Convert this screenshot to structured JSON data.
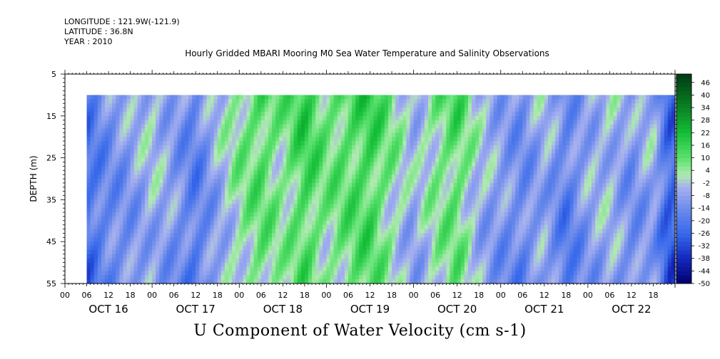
{
  "header": {
    "longitude": "LONGITUDE : 121.9W(-121.9)",
    "latitude": "LATITUDE : 36.8N",
    "year": "YEAR : 2010"
  },
  "chart_data": {
    "type": "heatmap",
    "title": "Hourly Gridded MBARI Mooring M0 Sea Water Temperature and Salinity Observations",
    "xlabel": "U Component of Water Velocity (cm s-1)",
    "ylabel": "DEPTH (m)",
    "x_range_hours": [
      0,
      168
    ],
    "data_start_hour": 6,
    "data_depth_range": [
      10,
      55
    ],
    "y_range": [
      5,
      55
    ],
    "y_inverted": true,
    "y_ticks": [
      5,
      15,
      25,
      35,
      45,
      55
    ],
    "x_hour_ticks": [
      "00",
      "06",
      "12",
      "18",
      "00",
      "06",
      "12",
      "18",
      "00",
      "06",
      "12",
      "18",
      "00",
      "06",
      "12",
      "18",
      "00",
      "06",
      "12",
      "18",
      "00",
      "06",
      "12",
      "18",
      "00",
      "06",
      "12",
      "18"
    ],
    "x_day_labels": [
      "OCT 16",
      "OCT 17",
      "OCT 18",
      "OCT 19",
      "OCT 20",
      "OCT 21",
      "OCT 22"
    ],
    "colorbar": {
      "labels": [
        46,
        40,
        34,
        28,
        22,
        16,
        10,
        4,
        -2,
        -8,
        -14,
        -20,
        -26,
        -32,
        -38,
        -44,
        -50
      ],
      "range": [
        -50,
        50
      ]
    },
    "time_profile": [
      {
        "hour": 6,
        "value": -22
      },
      {
        "hour": 12,
        "value": -14
      },
      {
        "hour": 18,
        "value": -10
      },
      {
        "hour": 24,
        "value": -4
      },
      {
        "hour": 30,
        "value": -10
      },
      {
        "hour": 36,
        "value": -18
      },
      {
        "hour": 42,
        "value": -6
      },
      {
        "hour": 48,
        "value": 4
      },
      {
        "hour": 54,
        "value": 10
      },
      {
        "hour": 60,
        "value": 4
      },
      {
        "hour": 66,
        "value": 14
      },
      {
        "hour": 72,
        "value": 6
      },
      {
        "hour": 78,
        "value": 10
      },
      {
        "hour": 84,
        "value": 14
      },
      {
        "hour": 90,
        "value": 4
      },
      {
        "hour": 96,
        "value": -6
      },
      {
        "hour": 102,
        "value": 4
      },
      {
        "hour": 108,
        "value": 10
      },
      {
        "hour": 114,
        "value": -4
      },
      {
        "hour": 120,
        "value": -10
      },
      {
        "hour": 126,
        "value": -14
      },
      {
        "hour": 132,
        "value": -6
      },
      {
        "hour": 138,
        "value": -18
      },
      {
        "hour": 144,
        "value": -8
      },
      {
        "hour": 150,
        "value": -4
      },
      {
        "hour": 156,
        "value": -12
      },
      {
        "hour": 162,
        "value": -6
      },
      {
        "hour": 166,
        "value": -26
      }
    ]
  }
}
